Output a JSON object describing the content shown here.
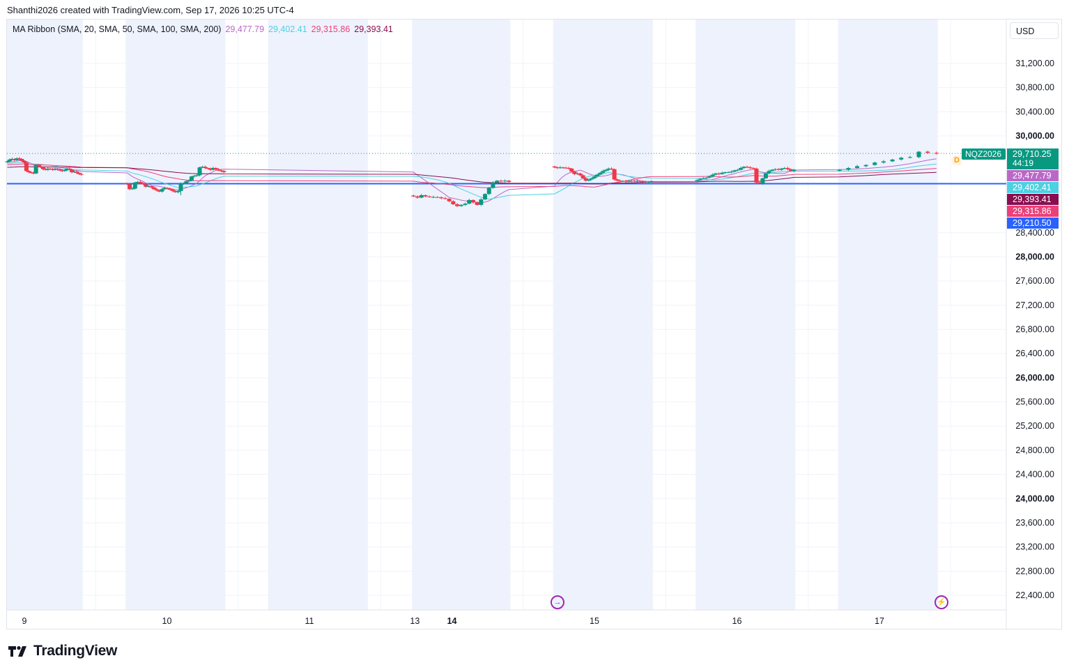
{
  "header": {
    "attribution": "Shanthi2026 created with TradingView.com, Sep 17, 2026 10:25 UTC-4"
  },
  "legend": {
    "label": "MA Ribbon (SMA, 20, SMA, 50, SMA, 100, SMA, 200)",
    "values": [
      "29,477.79",
      "29,402.41",
      "29,315.86",
      "29,393.41"
    ]
  },
  "currency": "USD",
  "footer": {
    "brand": "TradingView"
  },
  "colors": {
    "up": "#089981",
    "down": "#f23645",
    "sma20": "#ba68c8",
    "sma50": "#4dd0e1",
    "sma100": "#ec407a",
    "sma200": "#880e4f",
    "hline": "#2962ff",
    "session": "#eef2fd"
  },
  "chart_data": {
    "type": "candlestick",
    "symbol": "NQZ2026",
    "y_range": [
      22200,
      31500
    ],
    "y_ticks": [
      {
        "v": 31200,
        "label": "31,200.00",
        "major": false
      },
      {
        "v": 30800,
        "label": "30,800.00",
        "major": false
      },
      {
        "v": 30400,
        "label": "30,400.00",
        "major": false
      },
      {
        "v": 30000,
        "label": "30,000.00",
        "major": true
      },
      {
        "v": 28400,
        "label": "28,400.00",
        "major": false
      },
      {
        "v": 28000,
        "label": "28,000.00",
        "major": true
      },
      {
        "v": 27600,
        "label": "27,600.00",
        "major": false
      },
      {
        "v": 27200,
        "label": "27,200.00",
        "major": false
      },
      {
        "v": 26800,
        "label": "26,800.00",
        "major": false
      },
      {
        "v": 26400,
        "label": "26,400.00",
        "major": false
      },
      {
        "v": 26000,
        "label": "26,000.00",
        "major": true
      },
      {
        "v": 25600,
        "label": "25,600.00",
        "major": false
      },
      {
        "v": 25200,
        "label": "25,200.00",
        "major": false
      },
      {
        "v": 24800,
        "label": "24,800.00",
        "major": false
      },
      {
        "v": 24400,
        "label": "24,400.00",
        "major": false
      },
      {
        "v": 24000,
        "label": "24,000.00",
        "major": true
      },
      {
        "v": 23600,
        "label": "23,600.00",
        "major": false
      },
      {
        "v": 23200,
        "label": "23,200.00",
        "major": false
      },
      {
        "v": 22800,
        "label": "22,800.00",
        "major": false
      },
      {
        "v": 22400,
        "label": "22,400.00",
        "major": false
      }
    ],
    "x_ticks": [
      {
        "t": 0.0,
        "label": "9",
        "bold": false
      },
      {
        "t": 1.0,
        "label": "10",
        "bold": false
      },
      {
        "t": 2.0,
        "label": "11",
        "bold": false
      },
      {
        "t": 2.74,
        "label": "13",
        "bold": false
      },
      {
        "t": 3.0,
        "label": "14",
        "bold": true
      },
      {
        "t": 4.0,
        "label": "15",
        "bold": false
      },
      {
        "t": 5.0,
        "label": "16",
        "bold": false
      },
      {
        "t": 6.0,
        "label": "17",
        "bold": false
      }
    ],
    "sessions": [
      [
        -0.13,
        0.41
      ],
      [
        0.71,
        1.41
      ],
      [
        1.71,
        2.41
      ],
      [
        2.72,
        3.41
      ],
      [
        3.71,
        4.41
      ],
      [
        4.71,
        5.41
      ],
      [
        5.71,
        6.41
      ]
    ],
    "price_labels": [
      {
        "text": "NQZ2026",
        "value": 29710.25,
        "color": "#089981",
        "kind": "symbol"
      },
      {
        "text": "29,710.25",
        "sub": "44:19",
        "value": 29710.25,
        "color": "#089981",
        "kind": "last"
      },
      {
        "text": "29,477.79",
        "value": 29477.79,
        "color": "#ba68c8",
        "kind": "ma"
      },
      {
        "text": "29,402.41",
        "value": 29402.41,
        "color": "#4dd0e1",
        "kind": "ma"
      },
      {
        "text": "29,393.41",
        "value": 29393.41,
        "color": "#880e4f",
        "kind": "ma"
      },
      {
        "text": "29,315.86",
        "value": 29315.86,
        "color": "#ec407a",
        "kind": "ma"
      },
      {
        "text": "29,210.50",
        "value": 29210.5,
        "color": "#2962ff",
        "kind": "hline"
      }
    ],
    "hline": 29210.5,
    "last_price": 29710.25,
    "sessions_ohlc": [
      {
        "start": -0.12,
        "end": 0.4,
        "closes": [
          29580,
          29610,
          29620,
          29600,
          29630,
          29620,
          29590,
          29560,
          29420,
          29400,
          29390,
          29380,
          29520,
          29500,
          29480,
          29450,
          29440,
          29460,
          29455,
          29440,
          29450,
          29445,
          29430,
          29420,
          29435,
          29460,
          29445,
          29400,
          29410,
          29390,
          29370,
          29360
        ]
      },
      {
        "start": 0.72,
        "end": 1.4,
        "closes": [
          29200,
          29120,
          29130,
          29230,
          29240,
          29220,
          29200,
          29160,
          29170,
          29150,
          29120,
          29100,
          29080,
          29120,
          29140,
          29130,
          29110,
          29090,
          29070,
          29090,
          29210,
          29220,
          29250,
          29260,
          29330,
          29340,
          29350,
          29480,
          29490,
          29470,
          29460,
          29440,
          29470,
          29450,
          29430,
          29420,
          29400
        ]
      },
      {
        "start": 2.73,
        "end": 3.4,
        "closes": [
          29000,
          28980,
          29020,
          29000,
          28990,
          28990,
          28985,
          28970,
          28960,
          28920,
          28870,
          28840,
          28860,
          28880,
          28940,
          28900,
          28860,
          28950,
          29040,
          29140,
          29230,
          29260,
          29250,
          29260,
          29240
        ]
      },
      {
        "start": 3.72,
        "end": 4.4,
        "closes": [
          29480,
          29470,
          29480,
          29475,
          29470,
          29460,
          29410,
          29370,
          29380,
          29350,
          29300,
          29260,
          29280,
          29300,
          29330,
          29360,
          29390,
          29420,
          29440,
          29460,
          29450,
          29280,
          29260,
          29250,
          29255,
          29245,
          29250,
          29260,
          29250,
          29255,
          29250,
          29240,
          29230,
          29240,
          29250
        ]
      },
      {
        "start": 4.72,
        "end": 5.4,
        "closes": [
          29270,
          29290,
          29300,
          29310,
          29330,
          29360,
          29380,
          29370,
          29390,
          29400,
          29400,
          29410,
          29430,
          29440,
          29470,
          29490,
          29480,
          29470,
          29460,
          29230,
          29210,
          29300,
          29380,
          29420,
          29440,
          29450,
          29440,
          29460,
          29470,
          29450,
          29420,
          29440
        ]
      },
      {
        "start": 5.72,
        "end": 6.4,
        "closes": [
          29440,
          29470,
          29500,
          29520,
          29560,
          29580,
          29610,
          29640,
          29650,
          29740,
          29720,
          29710
        ]
      }
    ]
  }
}
